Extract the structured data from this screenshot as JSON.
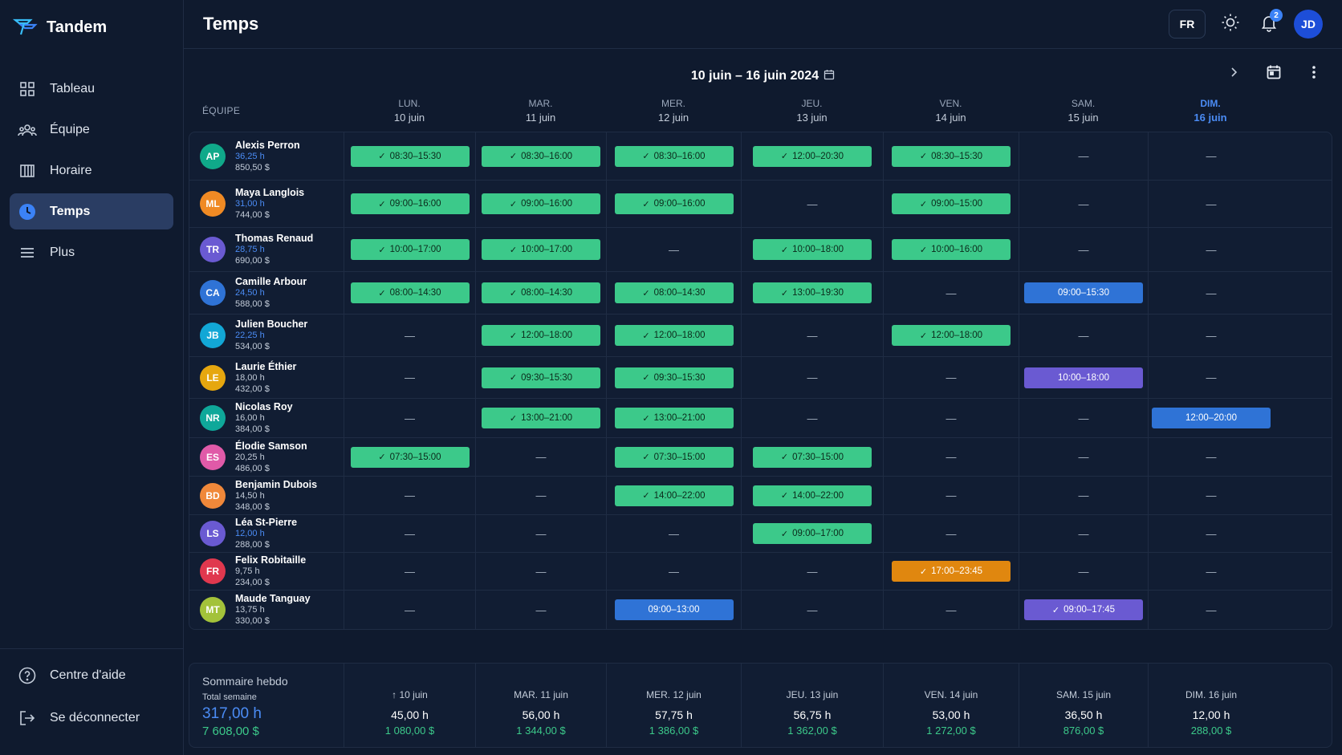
{
  "app": {
    "name": "Tandem",
    "page_title": "Temps"
  },
  "sidebar": {
    "items": [
      {
        "label": "Tableau",
        "icon": "grid-icon",
        "active": false
      },
      {
        "label": "Équipe",
        "icon": "team-icon",
        "active": false
      },
      {
        "label": "Horaire",
        "icon": "schedule-icon",
        "active": false
      },
      {
        "label": "Temps",
        "icon": "clock-icon",
        "active": true
      },
      {
        "label": "Plus",
        "icon": "menu-icon",
        "active": false
      }
    ],
    "bottom": [
      {
        "label": "Centre d'aide",
        "icon": "help-icon"
      },
      {
        "label": "Se déconnecter",
        "icon": "logout-icon"
      }
    ]
  },
  "topbar": {
    "lang": "FR",
    "notifications": "2",
    "user_initials": "JD"
  },
  "week": {
    "label": "10 juin – 16 juin 2024"
  },
  "grid": {
    "team_header": "ÉQUIPE",
    "days": [
      {
        "name": "LUN.",
        "date": "10 juin"
      },
      {
        "name": "MAR.",
        "date": "11 juin"
      },
      {
        "name": "MER.",
        "date": "12 juin"
      },
      {
        "name": "JEU.",
        "date": "13 juin"
      },
      {
        "name": "VEN.",
        "date": "14 juin"
      },
      {
        "name": "SAM.",
        "date": "15 juin"
      },
      {
        "name": "DIM.",
        "date": "16 juin",
        "today": true
      }
    ],
    "employees": [
      {
        "initials": "AP",
        "name": "Alexis Perron",
        "hours": "36,25 h",
        "hours_blue": true,
        "pay": "850,50 $",
        "color": "#10a98a",
        "shifts": [
          [
            "green",
            "08:30–15:30",
            true
          ],
          [
            "green",
            "08:30–16:00",
            true
          ],
          [
            "green",
            "08:30–16:00",
            true
          ],
          [
            "green",
            "12:00–20:30",
            true
          ],
          [
            "green",
            "08:30–15:30",
            true
          ],
          null,
          null
        ]
      },
      {
        "initials": "ML",
        "name": "Maya Langlois",
        "hours": "31,00 h",
        "hours_blue": true,
        "pay": "744,00 $",
        "color": "#f08a24",
        "shifts": [
          [
            "green",
            "09:00–16:00",
            true
          ],
          [
            "green",
            "09:00–16:00",
            true
          ],
          [
            "green",
            "09:00–16:00",
            true
          ],
          null,
          [
            "green",
            "09:00–15:00",
            true
          ],
          null,
          null
        ]
      },
      {
        "initials": "TR",
        "name": "Thomas Renaud",
        "hours": "28,75 h",
        "hours_blue": true,
        "pay": "690,00 $",
        "color": "#6a5ad2",
        "shifts": [
          [
            "green",
            "10:00–17:00",
            true
          ],
          [
            "green",
            "10:00–17:00",
            true
          ],
          null,
          [
            "green",
            "10:00–18:00",
            true
          ],
          [
            "green",
            "10:00–16:00",
            true
          ],
          null,
          null
        ]
      },
      {
        "initials": "CA",
        "name": "Camille Arbour",
        "hours": "24,50 h",
        "hours_blue": true,
        "pay": "588,00 $",
        "color": "#2f73d6",
        "shifts": [
          [
            "green",
            "08:00–14:30",
            true
          ],
          [
            "green",
            "08:00–14:30",
            true
          ],
          [
            "green",
            "08:00–14:30",
            true
          ],
          [
            "green",
            "13:00–19:30",
            true
          ],
          null,
          [
            "blue",
            "09:00–15:30",
            false
          ],
          null
        ]
      },
      {
        "initials": "JB",
        "name": "Julien Boucher",
        "hours": "22,25 h",
        "hours_blue": true,
        "pay": "534,00 $",
        "color": "#12a7d6",
        "shifts": [
          null,
          [
            "green",
            "12:00–18:00",
            true
          ],
          [
            "green",
            "12:00–18:00",
            true
          ],
          null,
          [
            "green",
            "12:00–18:00",
            true
          ],
          null,
          null
        ]
      },
      {
        "initials": "LE",
        "name": "Laurie Éthier",
        "hours": "18,00 h",
        "hours_blue": false,
        "pay": "432,00 $",
        "color": "#e6a70f",
        "shifts": [
          null,
          [
            "green",
            "09:30–15:30",
            true
          ],
          [
            "green",
            "09:30–15:30",
            true
          ],
          null,
          null,
          [
            "purple",
            "10:00–18:00",
            false
          ],
          null
        ]
      },
      {
        "initials": "NR",
        "name": "Nicolas Roy",
        "hours": "16,00 h",
        "hours_blue": false,
        "pay": "384,00 $",
        "color": "#0fa89a",
        "shifts": [
          null,
          [
            "green",
            "13:00–21:00",
            true
          ],
          [
            "green",
            "13:00–21:00",
            true
          ],
          null,
          null,
          null,
          [
            "blue",
            "12:00–20:00",
            false
          ]
        ]
      },
      {
        "initials": "ES",
        "name": "Élodie Samson",
        "hours": "20,25 h",
        "hours_blue": false,
        "pay": "486,00 $",
        "color": "#e05aa8",
        "shifts": [
          [
            "green",
            "07:30–15:00",
            true
          ],
          null,
          [
            "green",
            "07:30–15:00",
            true
          ],
          [
            "green",
            "07:30–15:00",
            true
          ],
          null,
          null,
          null
        ]
      },
      {
        "initials": "BD",
        "name": "Benjamin Dubois",
        "hours": "14,50 h",
        "hours_blue": false,
        "pay": "348,00 $",
        "color": "#f0883a",
        "shifts": [
          null,
          null,
          [
            "green",
            "14:00–22:00",
            true
          ],
          [
            "green",
            "14:00–22:00",
            true
          ],
          null,
          null,
          null
        ]
      },
      {
        "initials": "LS",
        "name": "Léa St-Pierre",
        "hours": "12,00 h",
        "hours_blue": true,
        "pay": "288,00 $",
        "color": "#6a5ad2",
        "shifts": [
          null,
          null,
          null,
          [
            "green",
            "09:00–17:00",
            true
          ],
          null,
          null,
          null
        ]
      },
      {
        "initials": "FR",
        "name": "Felix Robitaille",
        "hours": "9,75 h",
        "hours_blue": false,
        "pay": "234,00 $",
        "color": "#e0384e",
        "shifts": [
          null,
          null,
          null,
          null,
          [
            "orange",
            "17:00–23:45",
            true
          ],
          null,
          null
        ]
      },
      {
        "initials": "MT",
        "name": "Maude Tanguay",
        "hours": "13,75 h",
        "hours_blue": false,
        "pay": "330,00 $",
        "color": "#a3c23a",
        "shifts": [
          null,
          null,
          [
            "blue",
            "09:00–13:00",
            false
          ],
          null,
          null,
          [
            "purple",
            "09:00–17:45",
            true
          ],
          null
        ]
      }
    ],
    "empty_mark": "—"
  },
  "summary": {
    "title": "Sommaire hebdo",
    "subtitle": "Total semaine",
    "total_hours": "317,00 h",
    "total_pay": "7 608,00 $",
    "days": [
      {
        "label": "↑ 10 juin",
        "hours": "45,00 h",
        "pay": "1 080,00 $"
      },
      {
        "label": "MAR. 11 juin",
        "hours": "56,00 h",
        "pay": "1 344,00 $"
      },
      {
        "label": "MER. 12 juin",
        "hours": "57,75 h",
        "pay": "1 386,00 $"
      },
      {
        "label": "JEU. 13 juin",
        "hours": "56,75 h",
        "pay": "1 362,00 $"
      },
      {
        "label": "VEN. 14 juin",
        "hours": "53,00 h",
        "pay": "1 272,00 $"
      },
      {
        "label": "SAM. 15 juin",
        "hours": "36,50 h",
        "pay": "876,00 $"
      },
      {
        "label": "DIM. 16 juin",
        "hours": "12,00 h",
        "pay": "288,00 $"
      }
    ]
  },
  "colors": {
    "accent": "#3b82f6",
    "green": "#3cc98a",
    "background": "#0f1a2e"
  }
}
